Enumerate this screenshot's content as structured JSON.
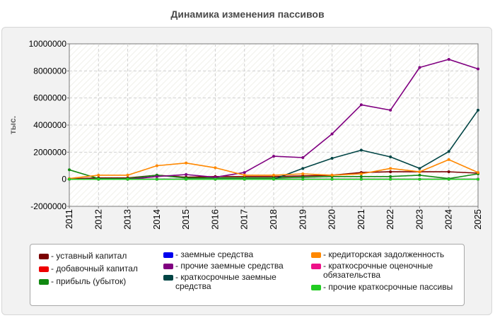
{
  "title": "Динамика изменения пассивов",
  "chart_data": {
    "type": "line",
    "ylabel": "тыс.",
    "ylim": [
      -2000000,
      10000000
    ],
    "yticks": [
      -2000000,
      0,
      2000000,
      4000000,
      6000000,
      8000000,
      10000000
    ],
    "ytick_labels": [
      "-2000000",
      "0",
      "2000000",
      "4000000",
      "6000000",
      "8000000",
      "10000000"
    ],
    "x": [
      "2011",
      "2012",
      "2013",
      "2014",
      "2015",
      "2016",
      "2017",
      "2018",
      "2019",
      "2020",
      "2021",
      "2022",
      "2023",
      "2024",
      "2025"
    ],
    "grid": true,
    "legend_position": "bottom",
    "series": [
      {
        "name": "уставный капитал",
        "color": "#7a0000",
        "values": [
          30000,
          100000,
          100000,
          300000,
          150000,
          200000,
          200000,
          200000,
          250000,
          300000,
          500000,
          550000,
          550000,
          550000,
          450000
        ]
      },
      {
        "name": "добавочный капитал",
        "color": "#ee0000",
        "values": [
          0,
          0,
          0,
          0,
          0,
          0,
          0,
          0,
          0,
          0,
          0,
          0,
          0,
          0,
          0
        ]
      },
      {
        "name": "прибыль (убыток)",
        "color": "#118811",
        "values": [
          700000,
          50000,
          50000,
          300000,
          100000,
          100000,
          100000,
          100000,
          150000,
          200000,
          200000,
          200000,
          300000,
          50000,
          400000
        ]
      },
      {
        "name": "заемные средства",
        "color": "#0000ee",
        "values": [
          0,
          0,
          0,
          0,
          0,
          0,
          0,
          0,
          0,
          0,
          0,
          0,
          0,
          0,
          0
        ]
      },
      {
        "name": "прочие заемные средства",
        "color": "#800080",
        "values": [
          0,
          0,
          0,
          200000,
          350000,
          150000,
          500000,
          1700000,
          1600000,
          3350000,
          5500000,
          5100000,
          8250000,
          8850000,
          8150000
        ]
      },
      {
        "name": "краткосрочные заемные средства",
        "color": "#004444",
        "values": [
          0,
          0,
          0,
          0,
          0,
          0,
          0,
          0,
          800000,
          1550000,
          2150000,
          1650000,
          800000,
          2050000,
          5100000
        ]
      },
      {
        "name": "кредиторская задолженность",
        "color": "#ff8800",
        "values": [
          50000,
          300000,
          300000,
          1000000,
          1200000,
          850000,
          300000,
          300000,
          400000,
          300000,
          400000,
          800000,
          550000,
          1450000,
          500000
        ]
      },
      {
        "name": "краткосрочные оценочные обязательства",
        "color": "#ee1188",
        "values": [
          0,
          0,
          0,
          0,
          0,
          0,
          0,
          0,
          0,
          0,
          0,
          0,
          0,
          0,
          0
        ]
      },
      {
        "name": "прочие краткосрочные пассивы",
        "color": "#22cc22",
        "values": [
          0,
          0,
          0,
          0,
          0,
          0,
          0,
          0,
          0,
          0,
          0,
          0,
          0,
          0,
          0
        ]
      }
    ]
  }
}
